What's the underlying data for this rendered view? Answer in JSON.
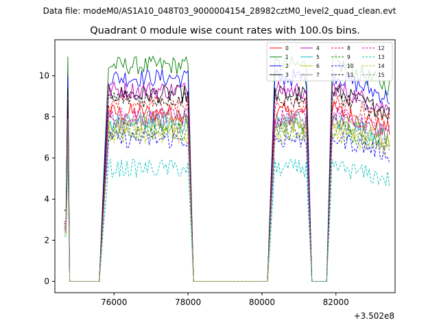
{
  "chart_data": {
    "type": "line",
    "suptitle": "Data file: modeM0/AS1A10_048T03_9000004154_28982cztM0_level2_quad_clean.evt",
    "title": "Quadrant 0 module wise count rates with 100.0s bins.",
    "xlabel": "",
    "ylabel": "",
    "x_offset_text": "+3.502e8",
    "xlim": [
      74400,
      83600
    ],
    "ylim": [
      -0.55,
      11.75
    ],
    "xticks": [
      76000,
      78000,
      80000,
      82000
    ],
    "xtick_labels": [
      "76000",
      "78000",
      "80000",
      "82000"
    ],
    "yticks": [
      0,
      2,
      4,
      6,
      8,
      10
    ],
    "ytick_labels": [
      "0",
      "2",
      "4",
      "6",
      "8",
      "10"
    ],
    "grid": false,
    "legend": {
      "placement": "top-right",
      "ncol": 4
    },
    "segments": [
      {
        "x_start": 74650,
        "x_end": 74750,
        "state": "on"
      },
      {
        "x_start": 74750,
        "x_end": 75600,
        "state": "off"
      },
      {
        "x_start": 75600,
        "x_end": 75850,
        "state": "ramp-up"
      },
      {
        "x_start": 75850,
        "x_end": 78000,
        "state": "on"
      },
      {
        "x_start": 78000,
        "x_end": 78150,
        "state": "ramp-down"
      },
      {
        "x_start": 78150,
        "x_end": 80150,
        "state": "off"
      },
      {
        "x_start": 80150,
        "x_end": 80350,
        "state": "ramp-up"
      },
      {
        "x_start": 80350,
        "x_end": 81200,
        "state": "on"
      },
      {
        "x_start": 81200,
        "x_end": 81350,
        "state": "ramp-down"
      },
      {
        "x_start": 81350,
        "x_end": 81750,
        "state": "off"
      },
      {
        "x_start": 81750,
        "x_end": 81900,
        "state": "ramp-up"
      },
      {
        "x_start": 81900,
        "x_end": 83450,
        "state": "on"
      }
    ],
    "series": [
      {
        "name": "0",
        "color": "#ff0000",
        "dash": "solid",
        "level": 8.2,
        "start": 2.9
      },
      {
        "name": "1",
        "color": "#008000",
        "dash": "solid",
        "level": 10.5,
        "start": 2.8
      },
      {
        "name": "2",
        "color": "#0000ff",
        "dash": "solid",
        "level": 9.9,
        "start": 2.8
      },
      {
        "name": "3",
        "color": "#000000",
        "dash": "solid",
        "level": 9.1,
        "start": 3.45
      },
      {
        "name": "4",
        "color": "#bf00bf",
        "dash": "solid",
        "level": 9.3,
        "start": 2.7
      },
      {
        "name": "5",
        "color": "#00bfbf",
        "dash": "solid",
        "level": 7.7,
        "start": 2.6
      },
      {
        "name": "6",
        "color": "#bfbf00",
        "dash": "solid",
        "level": 7.6,
        "start": 2.5
      },
      {
        "name": "7",
        "color": "#808080",
        "dash": "solid",
        "level": 7.9,
        "start": 2.4
      },
      {
        "name": "8",
        "color": "#ff0000",
        "dash": "dashed",
        "level": 8.6,
        "start": 2.7
      },
      {
        "name": "9",
        "color": "#008000",
        "dash": "dashed",
        "level": 7.3,
        "start": 2.4
      },
      {
        "name": "10",
        "color": "#0000ff",
        "dash": "dashed",
        "level": 6.9,
        "start": 2.3
      },
      {
        "name": "11",
        "color": "#000000",
        "dash": "dashed",
        "level": 8.9,
        "start": 2.6
      },
      {
        "name": "12",
        "color": "#bf00bf",
        "dash": "dashed",
        "level": 8.0,
        "start": 2.5
      },
      {
        "name": "13",
        "color": "#00bfbf",
        "dash": "dashed",
        "level": 5.5,
        "start": 2.2
      },
      {
        "name": "14",
        "color": "#bfbf00",
        "dash": "dashed",
        "level": 7.1,
        "start": 2.3
      },
      {
        "name": "15",
        "color": "#808080",
        "dash": "dashed",
        "level": 7.5,
        "start": 2.4
      }
    ]
  }
}
